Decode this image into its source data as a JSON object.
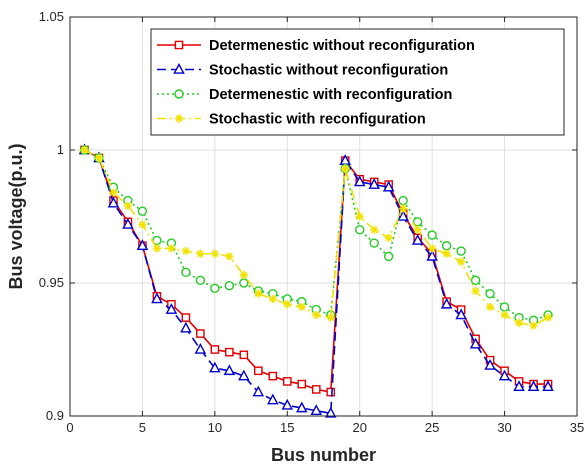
{
  "chart_data": {
    "type": "line",
    "title": "",
    "xlabel": "Bus number",
    "ylabel": "Bus voltage(p.u.)",
    "xlim": [
      0,
      35
    ],
    "ylim": [
      0.9,
      1.05
    ],
    "xticks": [
      "0",
      "5",
      "10",
      "15",
      "20",
      "25",
      "30",
      "35"
    ],
    "yticks": [
      "0.9",
      "0.95",
      "1",
      "1.05"
    ],
    "grid": true,
    "legend_position": "top-right",
    "x": [
      1,
      2,
      3,
      4,
      5,
      6,
      7,
      8,
      9,
      10,
      11,
      12,
      13,
      14,
      15,
      16,
      17,
      18,
      19,
      20,
      21,
      22,
      23,
      24,
      25,
      26,
      27,
      28,
      29,
      30,
      31,
      32,
      33
    ],
    "series": [
      {
        "name": "Determenestic without reconfiguration",
        "color": "#e00000",
        "line_style": "solid",
        "marker": "square",
        "values": [
          1.0,
          0.997,
          0.981,
          0.973,
          0.964,
          0.945,
          0.942,
          0.937,
          0.931,
          0.925,
          0.924,
          0.923,
          0.917,
          0.915,
          0.913,
          0.912,
          0.91,
          0.909,
          0.996,
          0.989,
          0.988,
          0.987,
          0.976,
          0.967,
          0.961,
          0.943,
          0.94,
          0.929,
          0.921,
          0.917,
          0.913,
          0.912,
          0.912
        ]
      },
      {
        "name": "Stochastic without reconfiguration",
        "color": "#0000cc",
        "line_style": "dashed",
        "marker": "triangle",
        "values": [
          1.0,
          0.997,
          0.98,
          0.972,
          0.964,
          0.944,
          0.94,
          0.933,
          0.925,
          0.918,
          0.917,
          0.915,
          0.909,
          0.906,
          0.904,
          0.903,
          0.902,
          0.901,
          0.996,
          0.988,
          0.987,
          0.986,
          0.975,
          0.966,
          0.96,
          0.942,
          0.938,
          0.927,
          0.919,
          0.915,
          0.911,
          0.911,
          0.911
        ]
      },
      {
        "name": "Determenestic with reconfiguration",
        "color": "#22cc22",
        "line_style": "dotted",
        "marker": "circle",
        "values": [
          1.0,
          0.997,
          0.986,
          0.981,
          0.977,
          0.966,
          0.965,
          0.954,
          0.951,
          0.948,
          0.949,
          0.95,
          0.947,
          0.946,
          0.944,
          0.943,
          0.94,
          0.938,
          0.993,
          0.97,
          0.965,
          0.96,
          0.981,
          0.973,
          0.968,
          0.964,
          0.962,
          0.951,
          0.946,
          0.941,
          0.937,
          0.936,
          0.938
        ]
      },
      {
        "name": "Stochastic with reconfiguration",
        "color": "#f2e200",
        "line_style": "dashdot",
        "marker": "star",
        "values": [
          1.0,
          0.997,
          0.984,
          0.979,
          0.972,
          0.963,
          0.963,
          0.962,
          0.961,
          0.961,
          0.96,
          0.953,
          0.946,
          0.944,
          0.942,
          0.941,
          0.938,
          0.937,
          0.993,
          0.975,
          0.97,
          0.967,
          0.978,
          0.97,
          0.963,
          0.961,
          0.958,
          0.947,
          0.941,
          0.938,
          0.935,
          0.934,
          0.937
        ]
      }
    ]
  }
}
